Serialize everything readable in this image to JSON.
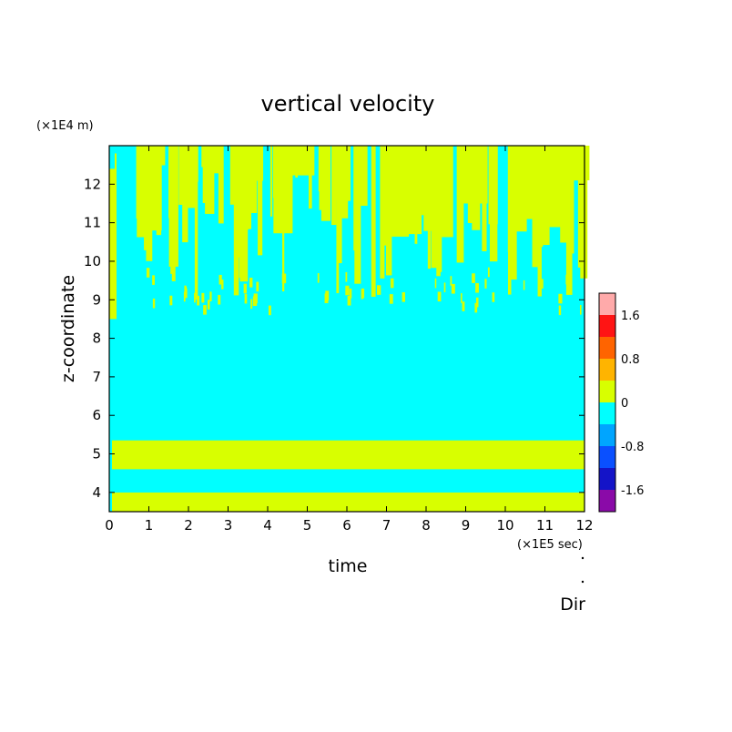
{
  "chart_data": {
    "type": "heatmap",
    "title": "vertical velocity",
    "xlabel": "time",
    "ylabel": "z-coordinate",
    "x_unit_label": "(×1E5 sec)",
    "y_unit_label": "(×1E4 m)",
    "footer_label": "Dir",
    "xlim": [
      0,
      12
    ],
    "ylim": [
      3.5,
      13
    ],
    "x_ticks": [
      "0",
      "1",
      "2",
      "3",
      "4",
      "5",
      "6",
      "7",
      "8",
      "9",
      "10",
      "11",
      "12"
    ],
    "y_ticks": [
      "4",
      "5",
      "6",
      "7",
      "8",
      "9",
      "10",
      "11",
      "12"
    ],
    "colorbar": {
      "range": [
        -2.0,
        2.0
      ],
      "levels": [
        -2.0,
        -1.6,
        -1.2,
        -0.8,
        -0.4,
        0,
        0.4,
        0.8,
        1.2,
        1.6,
        2.0
      ],
      "colors": [
        "#8a0aa8",
        "#1414c8",
        "#0a50ff",
        "#00a5ff",
        "#00ffff",
        "#d8ff00",
        "#ffb400",
        "#ff6400",
        "#ff1414",
        "#ffaaaa"
      ],
      "tick_labels": [
        "1.6",
        "0.8",
        "0",
        "-0.8",
        "-1.6"
      ],
      "tick_values": [
        1.6,
        0.8,
        0,
        -0.8,
        -1.6
      ]
    },
    "background_value": -0.2,
    "bands": [
      {
        "z_min": 4.6,
        "z_max": 5.35,
        "value": 0.2
      },
      {
        "z_min": 3.5,
        "z_max": 4.0,
        "value": 0.2
      }
    ],
    "band_gaps": [
      {
        "z_min": 4.0,
        "z_max": 4.6,
        "value": -0.2
      }
    ],
    "upper_positive_region": {
      "z_min": 8.5,
      "z_max": 13,
      "value": 0.2
    }
  }
}
